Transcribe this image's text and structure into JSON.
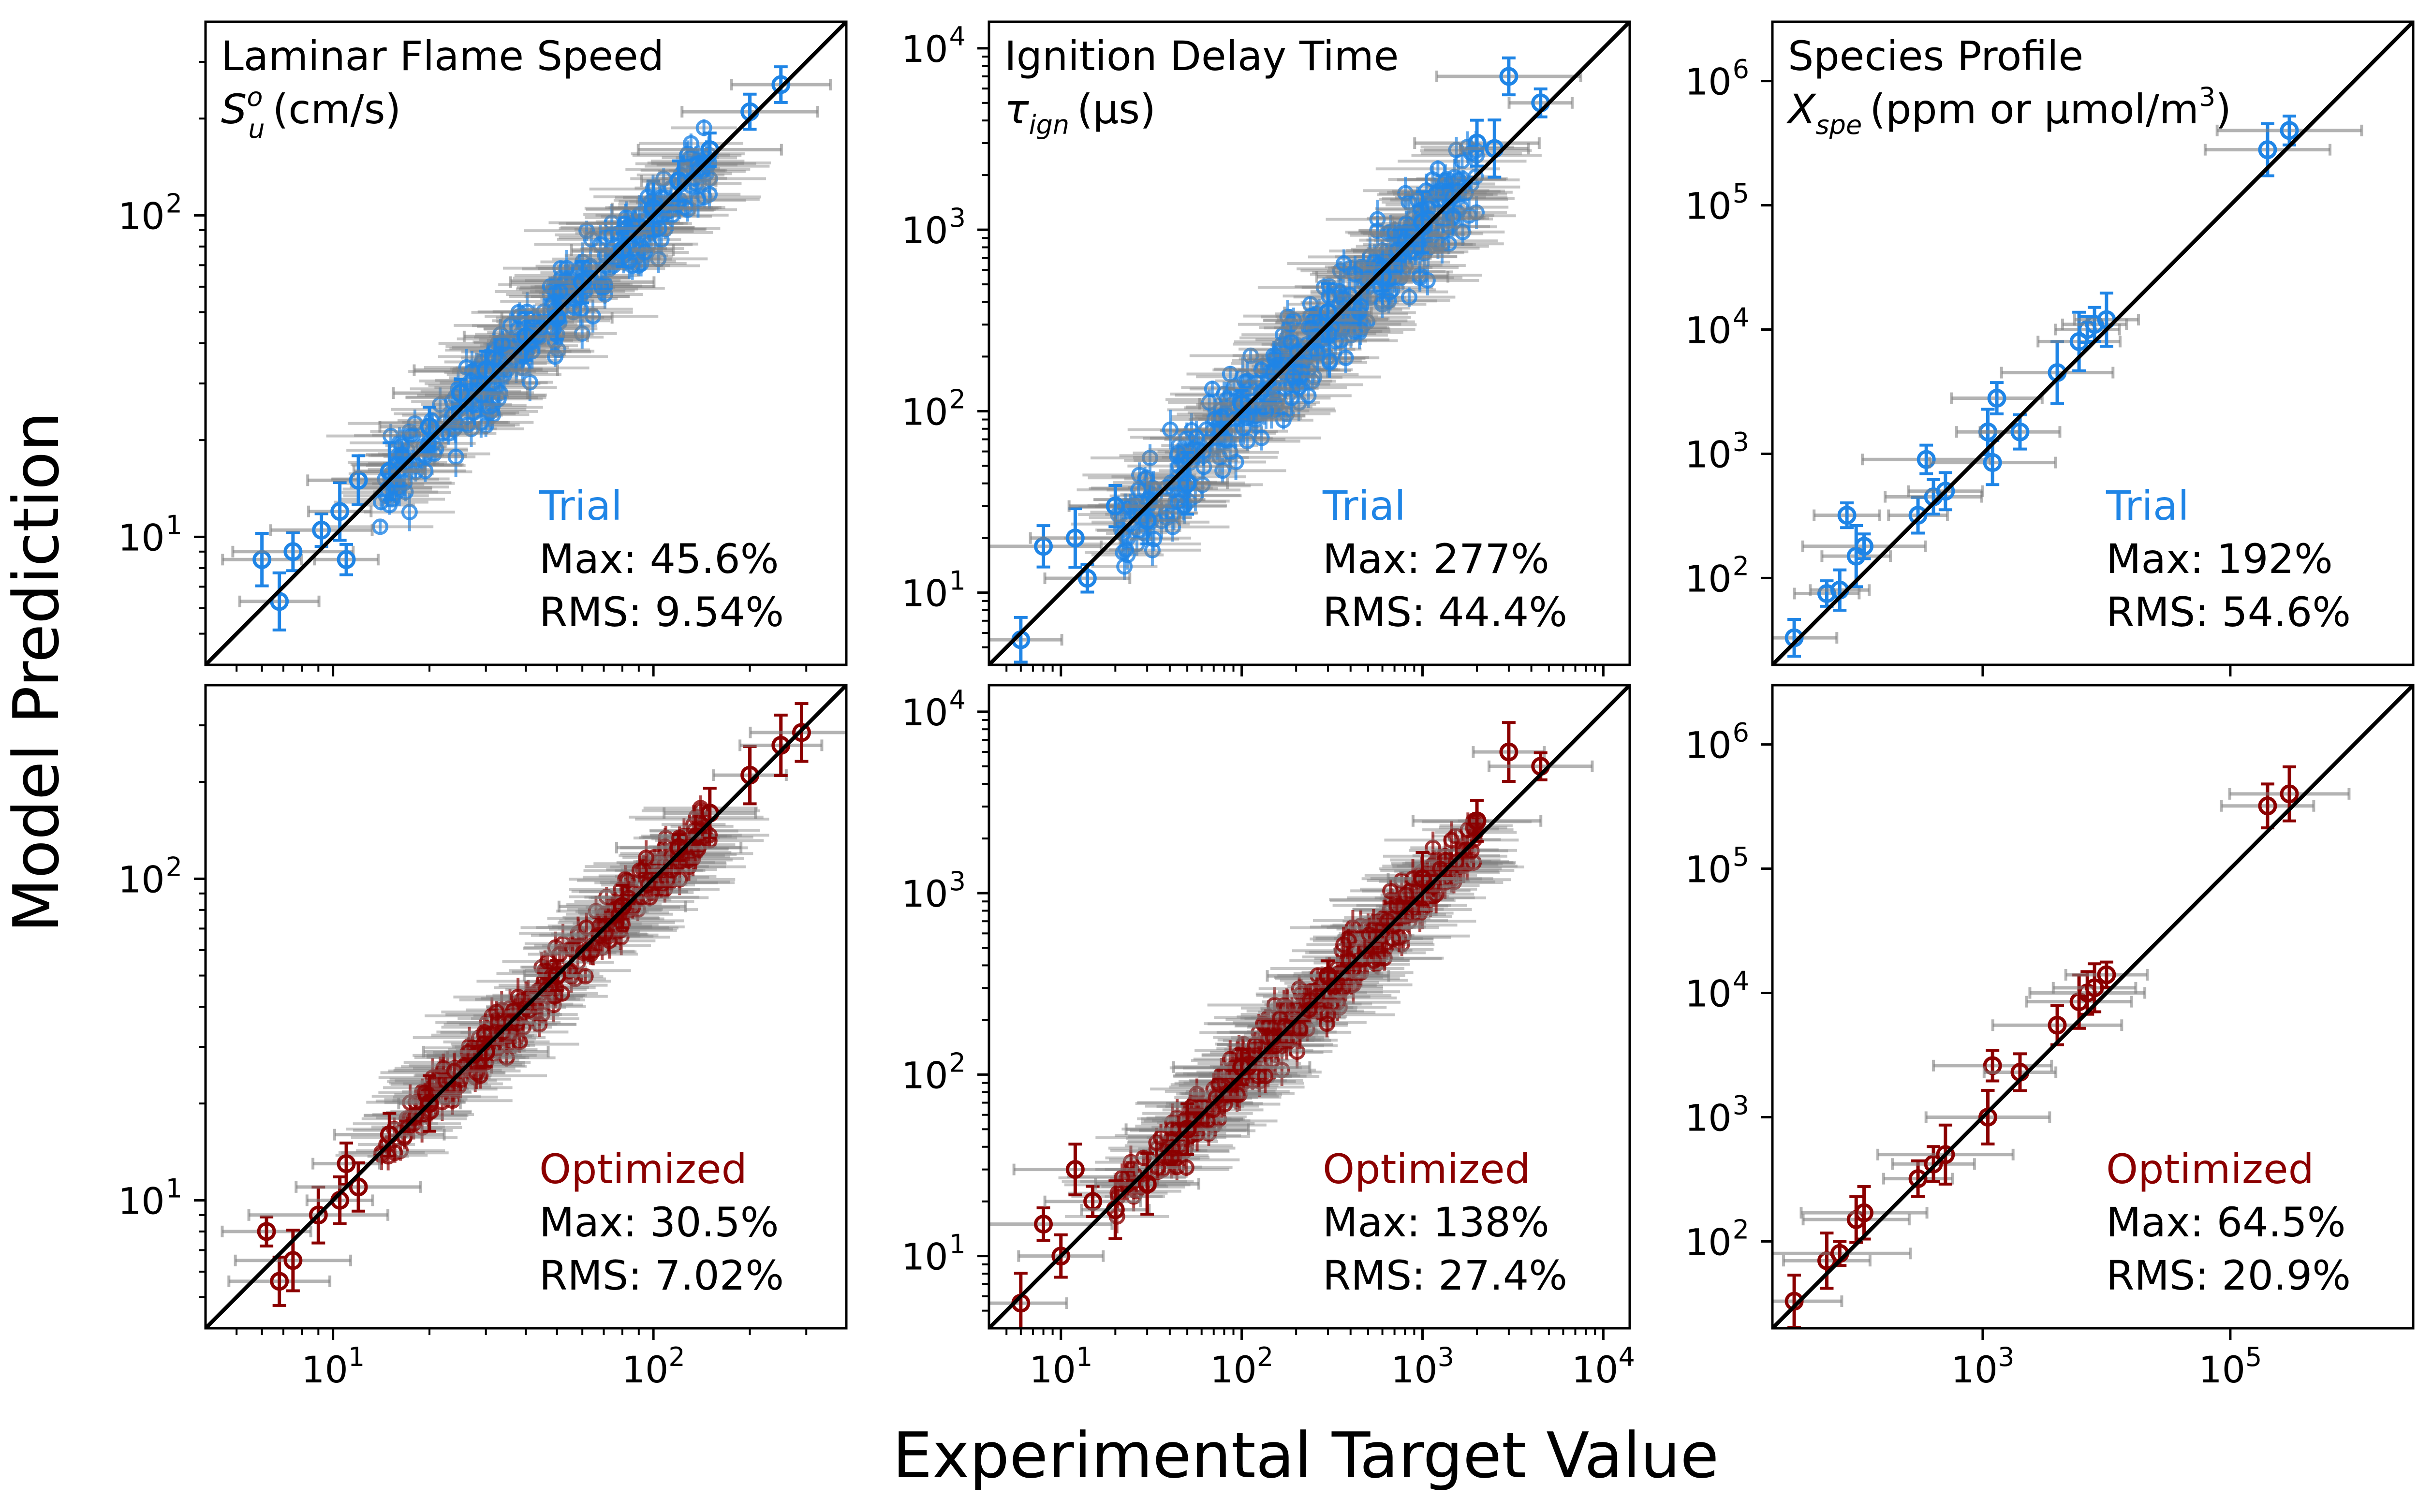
{
  "figure": {
    "ylabel": "Model Prediction",
    "xlabel": "Experimental Target Value"
  },
  "colors": {
    "trial": "#1f85e6",
    "optimized": "#8b0000",
    "xerr": "#808080",
    "diag": "#000000"
  },
  "chart_data": [
    {
      "id": "flame-trial",
      "type": "scatter",
      "quantity": "Laminar Flame Speed",
      "title": "Laminar Flame Speed",
      "unit_label": "(cm/s)",
      "symbol": "S",
      "sub": "u",
      "sup": "o",
      "series_name": "Trial",
      "max": "Max: 45.6%",
      "rms": "RMS: 9.54%",
      "xlim": [
        4,
        400
      ],
      "ylim": [
        4,
        400
      ],
      "diagonal": "y = x",
      "x_ticks": [
        {
          "v": 10,
          "m": "10",
          "e": "1"
        },
        {
          "v": 100,
          "m": "10",
          "e": "2"
        }
      ],
      "y_ticks": [
        {
          "v": 10,
          "m": "10",
          "e": "1"
        },
        {
          "v": 100,
          "m": "10",
          "e": "2"
        }
      ],
      "show_x_tick_labels": false,
      "points": [
        [
          6,
          8.5
        ],
        [
          6.8,
          6.3
        ],
        [
          7.5,
          9
        ],
        [
          9.2,
          10.5
        ],
        [
          10.5,
          12
        ],
        [
          11,
          8.5
        ],
        [
          12,
          15
        ],
        [
          15,
          16
        ],
        [
          20,
          22
        ],
        [
          25,
          28
        ],
        [
          30,
          33
        ],
        [
          40,
          42
        ],
        [
          50,
          48
        ],
        [
          60,
          62
        ],
        [
          80,
          78
        ],
        [
          100,
          105
        ],
        [
          120,
          128
        ],
        [
          150,
          160
        ],
        [
          200,
          210
        ],
        [
          250,
          255
        ]
      ],
      "cloud": {
        "range": [
          14,
          150
        ],
        "scatter": 0.06,
        "count": 320,
        "seed": 11
      }
    },
    {
      "id": "ignition-trial",
      "type": "scatter",
      "quantity": "Ignition Delay Time",
      "title": "Ignition Delay Time",
      "unit_label": "(μs)",
      "symbol": "τ",
      "sub": "ign",
      "sup": "",
      "series_name": "Trial",
      "max": "Max: 277%",
      "rms": "RMS: 44.4%",
      "xlim": [
        4,
        14000
      ],
      "ylim": [
        4,
        14000
      ],
      "diagonal": "y = x",
      "x_ticks": [
        {
          "v": 10,
          "m": "10",
          "e": "1"
        },
        {
          "v": 100,
          "m": "10",
          "e": "2"
        },
        {
          "v": 1000,
          "m": "10",
          "e": "3"
        },
        {
          "v": 10000,
          "m": "10",
          "e": "4"
        }
      ],
      "y_ticks": [
        {
          "v": 10,
          "m": "10",
          "e": "1"
        },
        {
          "v": 100,
          "m": "10",
          "e": "2"
        },
        {
          "v": 1000,
          "m": "10",
          "e": "3"
        },
        {
          "v": 10000,
          "m": "10",
          "e": "4"
        }
      ],
      "show_x_tick_labels": false,
      "points": [
        [
          6,
          5.5
        ],
        [
          8,
          18
        ],
        [
          12,
          20
        ],
        [
          14,
          12
        ],
        [
          20,
          30
        ],
        [
          30,
          25
        ],
        [
          50,
          40
        ],
        [
          100,
          110
        ],
        [
          300,
          350
        ],
        [
          600,
          550
        ],
        [
          1000,
          1100
        ],
        [
          2000,
          3000
        ],
        [
          3000,
          7000
        ],
        [
          2500,
          2800
        ],
        [
          4500,
          5000
        ]
      ],
      "cloud": {
        "range": [
          20,
          2000
        ],
        "scatter": 0.12,
        "count": 420,
        "seed": 23
      }
    },
    {
      "id": "species-trial",
      "type": "scatter",
      "quantity": "Species Profile",
      "title": "Species Profile",
      "unit_label": "(ppm or μmol/m",
      "unit_sup": "3",
      "unit_tail": ")",
      "symbol": "X",
      "sub": "spe",
      "sup": "",
      "series_name": "Trial",
      "max": "Max: 192%",
      "rms": "RMS: 54.6%",
      "xlim": [
        20,
        3000000
      ],
      "ylim": [
        20,
        3000000
      ],
      "diagonal": "y = x",
      "x_ticks": [
        {
          "v": 1000,
          "m": "10",
          "e": "3"
        },
        {
          "v": 100000,
          "m": "10",
          "e": "5"
        }
      ],
      "y_ticks": [
        {
          "v": 100,
          "m": "10",
          "e": "2"
        },
        {
          "v": 1000,
          "m": "10",
          "e": "3"
        },
        {
          "v": 10000,
          "m": "10",
          "e": "4"
        },
        {
          "v": 100000,
          "m": "10",
          "e": "5"
        },
        {
          "v": 1000000,
          "m": "10",
          "e": "6"
        }
      ],
      "show_x_tick_labels": false,
      "points": [
        [
          30,
          33
        ],
        [
          55,
          75
        ],
        [
          70,
          80
        ],
        [
          95,
          150
        ],
        [
          110,
          180
        ],
        [
          80,
          320
        ],
        [
          300,
          320
        ],
        [
          400,
          450
        ],
        [
          500,
          500
        ],
        [
          350,
          900
        ],
        [
          1100,
          1500
        ],
        [
          1200,
          850
        ],
        [
          1300,
          2800
        ],
        [
          2000,
          1500
        ],
        [
          4000,
          4500
        ],
        [
          6000,
          8000
        ],
        [
          7000,
          10000
        ],
        [
          8000,
          11000
        ],
        [
          10000,
          12000
        ],
        [
          200000,
          280000
        ],
        [
          300000,
          400000
        ]
      ],
      "cloud": null
    },
    {
      "id": "flame-opt",
      "type": "scatter",
      "quantity": "Laminar Flame Speed",
      "series_name": "Optimized",
      "max": "Max: 30.5%",
      "rms": "RMS: 7.02%",
      "xlim": [
        4,
        400
      ],
      "ylim": [
        4,
        400
      ],
      "diagonal": "y = x",
      "x_ticks": [
        {
          "v": 10,
          "m": "10",
          "e": "1"
        },
        {
          "v": 100,
          "m": "10",
          "e": "2"
        }
      ],
      "y_ticks": [
        {
          "v": 10,
          "m": "10",
          "e": "1"
        },
        {
          "v": 100,
          "m": "10",
          "e": "2"
        }
      ],
      "show_x_tick_labels": true,
      "points": [
        [
          6.2,
          8
        ],
        [
          6.8,
          5.6
        ],
        [
          7.5,
          6.5
        ],
        [
          9,
          9
        ],
        [
          10.5,
          10
        ],
        [
          11,
          13
        ],
        [
          12,
          11
        ],
        [
          15,
          16
        ],
        [
          20,
          20
        ],
        [
          30,
          29
        ],
        [
          50,
          50
        ],
        [
          80,
          82
        ],
        [
          120,
          125
        ],
        [
          150,
          160
        ],
        [
          200,
          210
        ],
        [
          250,
          260
        ],
        [
          290,
          285
        ]
      ],
      "cloud": {
        "range": [
          14,
          150
        ],
        "scatter": 0.04,
        "count": 300,
        "seed": 37
      }
    },
    {
      "id": "ignition-opt",
      "type": "scatter",
      "quantity": "Ignition Delay Time",
      "series_name": "Optimized",
      "max": "Max: 138%",
      "rms": "RMS: 27.4%",
      "xlim": [
        4,
        14000
      ],
      "ylim": [
        4,
        14000
      ],
      "diagonal": "y = x",
      "x_ticks": [
        {
          "v": 10,
          "m": "10",
          "e": "1"
        },
        {
          "v": 100,
          "m": "10",
          "e": "2"
        },
        {
          "v": 1000,
          "m": "10",
          "e": "3"
        },
        {
          "v": 10000,
          "m": "10",
          "e": "4"
        }
      ],
      "y_ticks": [
        {
          "v": 10,
          "m": "10",
          "e": "1"
        },
        {
          "v": 100,
          "m": "10",
          "e": "2"
        },
        {
          "v": 1000,
          "m": "10",
          "e": "3"
        },
        {
          "v": 10000,
          "m": "10",
          "e": "4"
        }
      ],
      "show_x_tick_labels": true,
      "points": [
        [
          6,
          5.5
        ],
        [
          8,
          15
        ],
        [
          10,
          10
        ],
        [
          12,
          30
        ],
        [
          15,
          20
        ],
        [
          20,
          18
        ],
        [
          30,
          25
        ],
        [
          50,
          50
        ],
        [
          100,
          110
        ],
        [
          300,
          350
        ],
        [
          1000,
          1200
        ],
        [
          2000,
          2500
        ],
        [
          3000,
          6000
        ],
        [
          4500,
          5000
        ]
      ],
      "cloud": {
        "range": [
          20,
          2000
        ],
        "scatter": 0.08,
        "count": 380,
        "seed": 51
      }
    },
    {
      "id": "species-opt",
      "type": "scatter",
      "quantity": "Species Profile",
      "series_name": "Optimized",
      "max": "Max: 64.5%",
      "rms": "RMS: 20.9%",
      "xlim": [
        20,
        3000000
      ],
      "ylim": [
        20,
        3000000
      ],
      "diagonal": "y = x",
      "x_ticks": [
        {
          "v": 1000,
          "m": "10",
          "e": "3"
        },
        {
          "v": 100000,
          "m": "10",
          "e": "5"
        }
      ],
      "y_ticks": [
        {
          "v": 100,
          "m": "10",
          "e": "2"
        },
        {
          "v": 1000,
          "m": "10",
          "e": "3"
        },
        {
          "v": 10000,
          "m": "10",
          "e": "4"
        },
        {
          "v": 100000,
          "m": "10",
          "e": "5"
        },
        {
          "v": 1000000,
          "m": "10",
          "e": "6"
        }
      ],
      "show_x_tick_labels": true,
      "points": [
        [
          30,
          33
        ],
        [
          55,
          70
        ],
        [
          70,
          80
        ],
        [
          95,
          150
        ],
        [
          110,
          170
        ],
        [
          300,
          320
        ],
        [
          400,
          420
        ],
        [
          500,
          500
        ],
        [
          1100,
          1000
        ],
        [
          1200,
          2600
        ],
        [
          2000,
          2300
        ],
        [
          4000,
          5500
        ],
        [
          6000,
          8500
        ],
        [
          7000,
          10000
        ],
        [
          8000,
          11000
        ],
        [
          10000,
          14000
        ],
        [
          200000,
          320000
        ],
        [
          300000,
          400000
        ]
      ],
      "cloud": null
    }
  ]
}
